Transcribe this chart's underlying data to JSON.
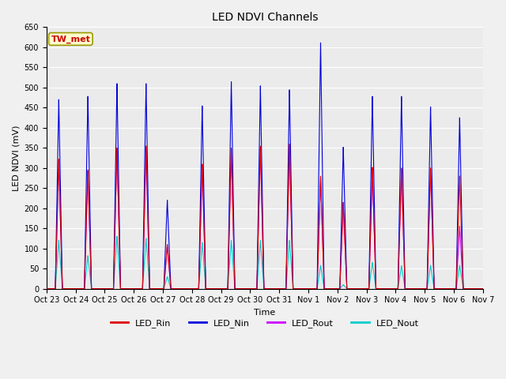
{
  "title": "LED NDVI Channels",
  "xlabel": "Time",
  "ylabel": "LED NDVI (mV)",
  "ylim": [
    0,
    650
  ],
  "x_labels": [
    "Oct 23",
    "Oct 24",
    "Oct 25",
    "Oct 26",
    "Oct 27",
    "Oct 28",
    "Oct 29",
    "Oct 30",
    "Oct 31",
    "Nov 1",
    "Nov 2",
    "Nov 3",
    "Nov 4",
    "Nov 5",
    "Nov 6",
    "Nov 7"
  ],
  "colors": {
    "LED_Rin": "#dd0000",
    "LED_Nin": "#0000dd",
    "LED_Rout": "#cc00ff",
    "LED_Nout": "#00cccc"
  },
  "annotation_text": "TW_met",
  "annotation_color": "#cc0000",
  "annotation_bg": "#ffffcc",
  "annotation_border": "#999900",
  "bg_color": "#f0f0f0",
  "plot_bg": "#ebebeb",
  "grid_color": "#ffffff",
  "peaks": [
    {
      "day": 0.42,
      "Nin": 470,
      "Rin": 322,
      "Rout": 320,
      "Nout": 120
    },
    {
      "day": 1.42,
      "Nin": 478,
      "Rin": 295,
      "Rout": 290,
      "Nout": 82
    },
    {
      "day": 2.42,
      "Nin": 510,
      "Rin": 350,
      "Rout": 348,
      "Nout": 130
    },
    {
      "day": 3.42,
      "Nin": 510,
      "Rin": 355,
      "Rout": 350,
      "Nout": 125
    },
    {
      "day": 4.15,
      "Nin": 220,
      "Rin": 110,
      "Rout": 108,
      "Nout": 30
    },
    {
      "day": 5.35,
      "Nin": 455,
      "Rin": 310,
      "Rout": 308,
      "Nout": 115
    },
    {
      "day": 6.35,
      "Nin": 515,
      "Rin": 350,
      "Rout": 345,
      "Nout": 120
    },
    {
      "day": 7.35,
      "Nin": 505,
      "Rin": 355,
      "Rout": 350,
      "Nout": 120
    },
    {
      "day": 8.35,
      "Nin": 495,
      "Rin": 360,
      "Rout": 355,
      "Nout": 120
    },
    {
      "day": 9.42,
      "Nin": 612,
      "Rin": 280,
      "Rout": 275,
      "Nout": 58
    },
    {
      "day": 10.2,
      "Nin": 352,
      "Rin": 215,
      "Rout": 210,
      "Nout": 10
    },
    {
      "day": 11.2,
      "Nin": 478,
      "Rin": 302,
      "Rout": 298,
      "Nout": 65
    },
    {
      "day": 12.2,
      "Nin": 478,
      "Rin": 300,
      "Rout": 295,
      "Nout": 57
    },
    {
      "day": 13.2,
      "Nin": 452,
      "Rin": 300,
      "Rout": 298,
      "Nout": 58
    },
    {
      "day": 14.2,
      "Nin": 425,
      "Rin": 280,
      "Rout": 155,
      "Nout": 58
    }
  ]
}
